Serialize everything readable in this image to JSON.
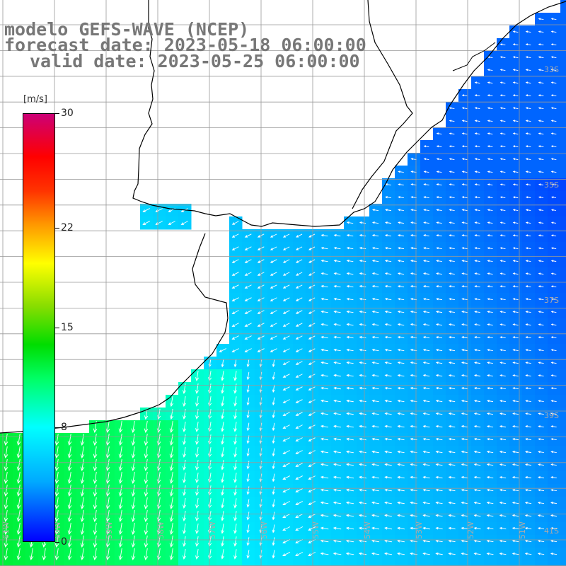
{
  "header": {
    "model": "modelo GEFS-WAVE (NCEP)",
    "forecast": "forecast date: 2023-05-18 06:00:00",
    "valid": "valid date: 2023-05-25 06:00:00"
  },
  "colorbar": {
    "units": "[m/s]",
    "ticks": [
      {
        "value": 30,
        "label": "30"
      },
      {
        "value": 22,
        "label": "22"
      },
      {
        "value": 15,
        "label": "15"
      },
      {
        "value": 8,
        "label": "8"
      },
      {
        "value": 0,
        "label": "0"
      }
    ],
    "range": [
      0,
      30
    ]
  },
  "map": {
    "lat_labels": [
      "33S",
      "35S",
      "37S",
      "39S",
      "41S"
    ],
    "lon_labels": [
      "61W",
      "60W",
      "59W",
      "58W",
      "57W",
      "56W",
      "55W",
      "54W",
      "53W",
      "52W",
      "51W"
    ],
    "colors": {
      "land": "#ffffff",
      "coast": "#000000",
      "grid": "#999999",
      "arrow": "#ffffff"
    }
  }
}
